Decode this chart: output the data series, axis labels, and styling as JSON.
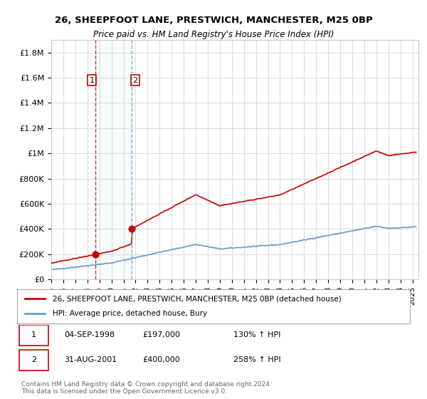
{
  "title1": "26, SHEEPFOOT LANE, PRESTWICH, MANCHESTER, M25 0BP",
  "title2": "Price paid vs. HM Land Registry's House Price Index (HPI)",
  "yticks": [
    0,
    200000,
    400000,
    600000,
    800000,
    1000000,
    1200000,
    1400000,
    1600000,
    1800000
  ],
  "ytick_labels": [
    "£0",
    "£200K",
    "£400K",
    "£600K",
    "£800K",
    "£1M",
    "£1.2M",
    "£1.4M",
    "£1.6M",
    "£1.8M"
  ],
  "xlim_start": 1995.0,
  "xlim_end": 2025.5,
  "ylim_min": 0,
  "ylim_max": 1900000,
  "red_line_color": "#cc0000",
  "blue_line_color": "#6699cc",
  "transaction1_x": 1998.674,
  "transaction1_y": 197000,
  "transaction2_x": 2001.664,
  "transaction2_y": 400000,
  "legend_label_red": "26, SHEEPFOOT LANE, PRESTWICH, MANCHESTER, M25 0BP (detached house)",
  "legend_label_blue": "HPI: Average price, detached house, Bury",
  "annotation1_label": "1",
  "annotation2_label": "2",
  "table_rows": [
    [
      "1",
      "04-SEP-1998",
      "£197,000",
      "130% ↑ HPI"
    ],
    [
      "2",
      "31-AUG-2001",
      "£400,000",
      "258% ↑ HPI"
    ]
  ],
  "footer": "Contains HM Land Registry data © Crown copyright and database right 2024.\nThis data is licensed under the Open Government Licence v3.0.",
  "background_color": "#ffffff",
  "grid_color": "#dddddd"
}
